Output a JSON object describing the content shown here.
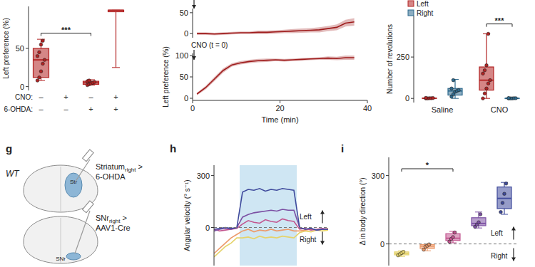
{
  "chart_data": [
    {
      "type": "box",
      "y_label": "Left preference (%)",
      "categories": [
        null,
        null,
        null,
        null
      ],
      "x_rows": [
        {
          "label": "CNO:",
          "values": [
            "–",
            "+",
            "–",
            "+"
          ]
        },
        {
          "label": "6-OHDA:",
          "values": [
            "–",
            "–",
            "+",
            "+"
          ]
        }
      ],
      "ylim": [
        -5,
        105
      ],
      "yticks": [
        0,
        50
      ],
      "series": [
        {
          "color": "#b22222",
          "min": [
            8,
            null,
            2,
            25
          ],
          "q1": [
            12,
            null,
            3,
            98
          ],
          "median": [
            35,
            null,
            5,
            100
          ],
          "q3": [
            50,
            null,
            7,
            100
          ],
          "max": [
            62,
            null,
            9,
            100
          ],
          "points": [
            [
              8,
              12,
              20,
              30,
              35,
              40,
              45,
              55,
              60
            ],
            [],
            [
              2,
              3,
              4,
              5,
              6,
              7,
              8
            ],
            []
          ]
        }
      ],
      "annotations": [
        {
          "text": "***",
          "x1": 0,
          "x2": 2,
          "y": 70
        }
      ]
    },
    {
      "type": "line",
      "xlim": [
        0,
        40
      ],
      "ylim": [
        -10,
        60
      ],
      "yticks": [
        0,
        50
      ],
      "tick_labels": "y",
      "x": [
        1,
        3,
        5,
        7,
        9,
        11,
        13,
        15,
        17,
        19,
        21,
        23,
        25,
        27,
        29,
        31,
        33,
        35,
        37
      ],
      "series": [
        {
          "color": "#9e1b1b",
          "values": [
            0,
            0,
            -1,
            0,
            1,
            2,
            2,
            3,
            3,
            4,
            5,
            6,
            7,
            8,
            9,
            12,
            15,
            25,
            28
          ],
          "error": [
            3,
            3,
            3,
            3,
            3,
            3,
            3,
            4,
            4,
            4,
            4,
            5,
            5,
            5,
            6,
            6,
            7,
            8,
            9
          ]
        }
      ]
    },
    {
      "type": "line",
      "x_label": "Time (min)",
      "y_label": "Left preference (%)",
      "xlim": [
        0,
        40
      ],
      "xticks": [
        0,
        20,
        40
      ],
      "ylim": [
        -5,
        105
      ],
      "yticks": [
        0,
        50,
        100
      ],
      "x": [
        1,
        3,
        5,
        7,
        9,
        11,
        13,
        15,
        17,
        19,
        21,
        23,
        25,
        27,
        29,
        31,
        33,
        35,
        37
      ],
      "series": [
        {
          "color": "#9e1b1b",
          "values": [
            10,
            25,
            45,
            65,
            78,
            83,
            86,
            88,
            89,
            90,
            89,
            90,
            91,
            92,
            93,
            94,
            93,
            95,
            95
          ],
          "error": [
            3,
            4,
            5,
            5,
            4,
            4,
            4,
            4,
            4,
            3,
            3,
            3,
            3,
            3,
            3,
            4,
            4,
            5,
            5
          ]
        }
      ],
      "annotations": [
        {
          "text": "CNO (t = 0)",
          "x": 0
        }
      ]
    },
    {
      "type": "box",
      "y_label": "Number of revolutions",
      "categories": [
        "Saline",
        "CNO"
      ],
      "ylim": [
        -25,
        500
      ],
      "yticks": [
        0,
        250
      ],
      "legend": "top-left",
      "series": [
        {
          "name": "Left",
          "color": "#b22222",
          "min": [
            0,
            0
          ],
          "q1": [
            0,
            50
          ],
          "median": [
            1,
            110
          ],
          "q3": [
            2,
            190
          ],
          "max": [
            4,
            390
          ],
          "points": [
            [
              0,
              0,
              1,
              1,
              2,
              3
            ],
            [
              0,
              30,
              60,
              90,
              110,
              150,
              170,
              200,
              390
            ]
          ]
        },
        {
          "name": "Right",
          "color": "#2e6a8e",
          "min": [
            0,
            0
          ],
          "q1": [
            20,
            0
          ],
          "median": [
            45,
            0
          ],
          "q3": [
            60,
            1
          ],
          "max": [
            115,
            2
          ],
          "points": [
            [
              10,
              25,
              40,
              45,
              50,
              60,
              110
            ],
            [
              0,
              0,
              0,
              1,
              1,
              2
            ]
          ]
        }
      ],
      "annotations": [
        {
          "text": "***",
          "x1": 1,
          "x2": 1,
          "y": 450
        }
      ]
    },
    {
      "type": "line",
      "title": "h",
      "y_label": "Angular velocity (° s⁻¹)",
      "x": [
        0,
        1,
        2,
        3,
        4,
        5,
        6,
        7,
        8,
        9,
        10,
        11,
        12,
        13,
        14,
        15,
        16,
        17,
        18,
        19,
        20
      ],
      "xlim": [
        0,
        20
      ],
      "ylim": [
        -220,
        360
      ],
      "yticks": [
        0,
        300
      ],
      "tick_labels": "y",
      "stim_window": [
        4.5,
        14.5
      ],
      "series": [
        {
          "color": "#e5d36b",
          "values": [
            -170,
            -140,
            -110,
            -90,
            -60,
            -60,
            -55,
            -65,
            -50,
            -60,
            -55,
            -60,
            -50,
            -55,
            -60,
            -30,
            -20,
            -25,
            -15,
            -20,
            -15
          ]
        },
        {
          "color": "#ec9a6b",
          "values": [
            -150,
            -120,
            -90,
            -60,
            -40,
            -20,
            -10,
            -25,
            -15,
            -20,
            -10,
            -20,
            -15,
            -10,
            -20,
            -20,
            -15,
            -10,
            -15,
            -10,
            -5
          ]
        },
        {
          "color": "#c2558f",
          "values": [
            -10,
            -20,
            -15,
            -10,
            -5,
            20,
            40,
            30,
            25,
            45,
            35,
            30,
            50,
            40,
            35,
            -10,
            -5,
            -15,
            -10,
            -5,
            -10
          ]
        },
        {
          "color": "#7b4fa3",
          "values": [
            -20,
            -10,
            -5,
            -10,
            0,
            60,
            75,
            85,
            90,
            95,
            100,
            95,
            105,
            100,
            100,
            0,
            -10,
            -5,
            -15,
            -10,
            -10
          ]
        },
        {
          "color": "#3f4a9c",
          "values": [
            -10,
            -5,
            0,
            -5,
            0,
            205,
            220,
            215,
            225,
            210,
            220,
            215,
            225,
            220,
            215,
            0,
            -10,
            -5,
            -15,
            -10,
            -10
          ]
        }
      ],
      "annotations": [
        {
          "text": "Left",
          "direction": "up"
        },
        {
          "text": "Right",
          "direction": "down"
        }
      ]
    },
    {
      "type": "box",
      "title": "i",
      "y_label": "Δ in body direction (°)",
      "categories": [
        null,
        null,
        null,
        null,
        null
      ],
      "ylim": [
        -95,
        380
      ],
      "yticks": [
        0,
        300
      ],
      "series": [
        {
          "colors": [
            "#e5d36b",
            "#ec9a6b",
            "#c2558f",
            "#7b4fa3",
            "#3f4a9c"
          ],
          "min": [
            -55,
            -30,
            5,
            70,
            130
          ],
          "q1": [
            -48,
            -20,
            15,
            80,
            155
          ],
          "median": [
            -42,
            -10,
            25,
            90,
            200
          ],
          "q3": [
            -35,
            -3,
            45,
            115,
            250
          ],
          "max": [
            -30,
            0,
            55,
            140,
            270
          ],
          "points": [
            [
              -50,
              -45,
              -40,
              -35
            ],
            [
              -25,
              -12,
              -8,
              -2
            ],
            [
              10,
              22,
              30,
              50
            ],
            [
              75,
              85,
              95,
              130
            ],
            [
              140,
              180,
              220,
              265
            ]
          ]
        }
      ],
      "annotations": [
        {
          "text": "*",
          "x1": 0,
          "x2": 2,
          "y": 330
        },
        {
          "text": "Left",
          "direction": "up"
        },
        {
          "text": "Right",
          "direction": "down"
        }
      ]
    }
  ],
  "diagram": {
    "title": "g",
    "genotype": "WT",
    "nodes": [
      {
        "region": "Striatum",
        "subscript": "right",
        "symbol": ">",
        "agent": "6-OHDA",
        "label": "Str"
      },
      {
        "region": "SNr",
        "subscript": "right",
        "symbol": ">",
        "agent": "AAV1-Cre",
        "label": "SNr"
      }
    ]
  }
}
